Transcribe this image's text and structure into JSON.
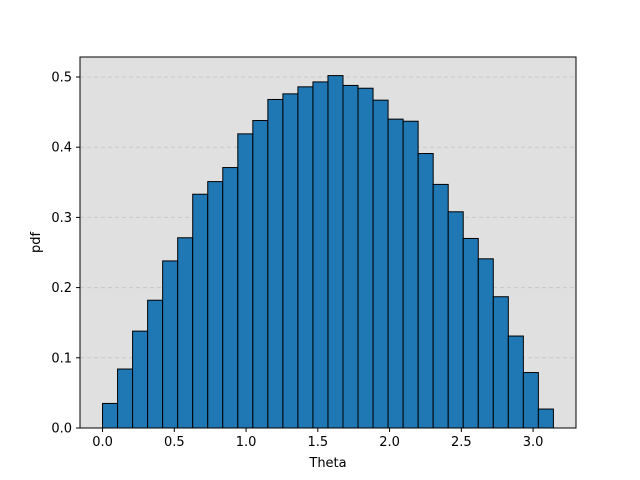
{
  "chart_data": {
    "type": "bar",
    "histogram": true,
    "title": "",
    "xlabel": "Theta",
    "ylabel": "pdf",
    "xlim": [
      -0.157,
      3.299
    ],
    "ylim": [
      0.0,
      0.5
    ],
    "x_ticks": [
      0.0,
      0.5,
      1.0,
      1.5,
      2.0,
      2.5,
      3.0
    ],
    "x_tick_labels": [
      "0.0",
      "0.5",
      "1.0",
      "1.5",
      "2.0",
      "2.5",
      "3.0"
    ],
    "y_ticks": [
      0.0,
      0.1,
      0.2,
      0.3,
      0.4,
      0.5
    ],
    "y_tick_labels": [
      "0.0",
      "0.1",
      "0.2",
      "0.3",
      "0.4",
      "0.5"
    ],
    "grid": {
      "axis": "y",
      "style": "dashed",
      "color": "#c8c8c8"
    },
    "bin_start": 0.0,
    "bin_end": 3.1416,
    "bins": 30,
    "values": [
      0.035,
      0.084,
      0.138,
      0.182,
      0.238,
      0.271,
      0.333,
      0.351,
      0.371,
      0.419,
      0.438,
      0.468,
      0.476,
      0.486,
      0.493,
      0.502,
      0.488,
      0.484,
      0.467,
      0.44,
      0.437,
      0.391,
      0.347,
      0.308,
      0.27,
      0.241,
      0.187,
      0.131,
      0.079,
      0.027
    ],
    "colors": {
      "bar_fill": "#1f77b4",
      "bar_edge": "#000000",
      "plot_background": "#e0e0e0",
      "grid": "#c8c8c8"
    }
  }
}
